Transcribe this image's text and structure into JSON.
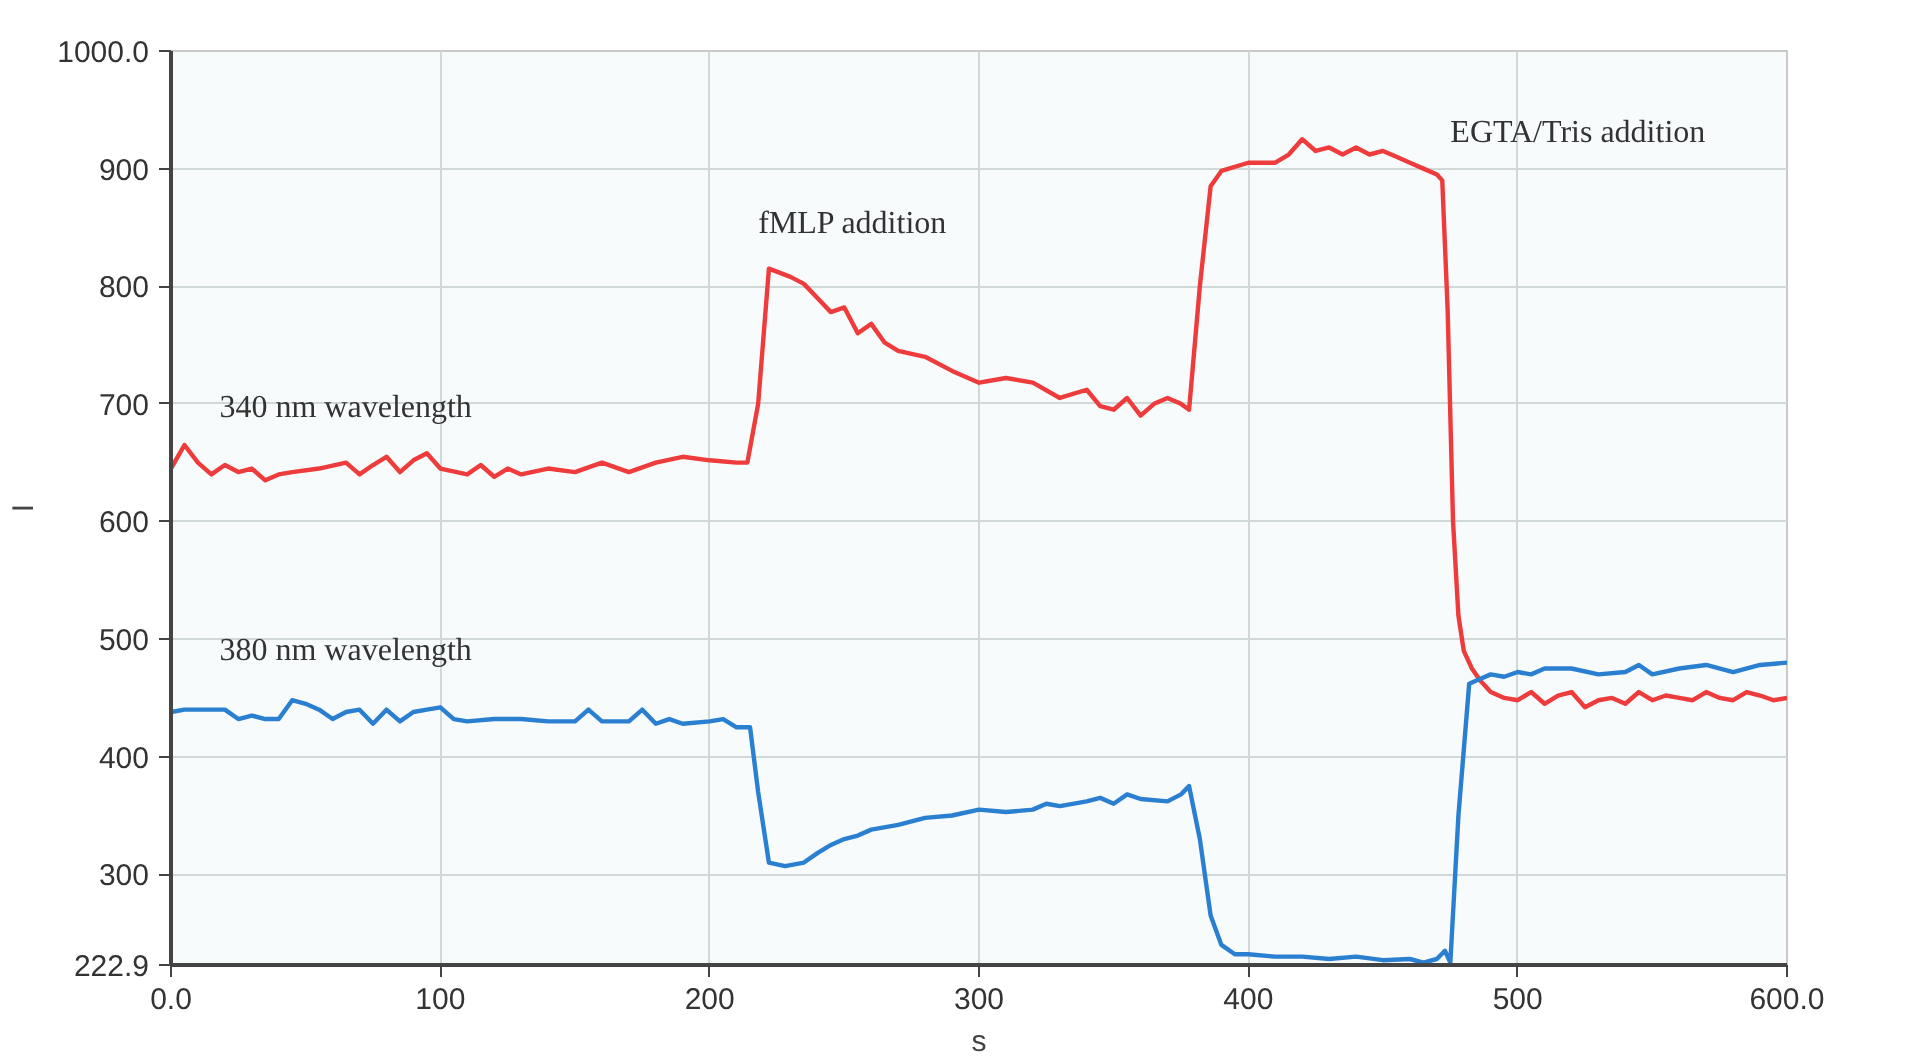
{
  "chart_data": {
    "type": "line",
    "xlabel": "s",
    "ylabel": "I",
    "xlim": [
      0,
      600
    ],
    "ylim": [
      222.9,
      1000
    ],
    "xticks": [
      {
        "value": 0,
        "label": "0.0"
      },
      100,
      200,
      300,
      400,
      500,
      {
        "value": 600,
        "label": "600.0"
      }
    ],
    "yticks": [
      222.9,
      300,
      400,
      500,
      600,
      700,
      800,
      900,
      {
        "value": 1000,
        "label": "1000.0"
      }
    ],
    "grid": true,
    "marker": "none",
    "line_style": "solid",
    "annotations": [
      {
        "text": "fMLP addition",
        "x": 218,
        "y": 818
      },
      {
        "text": "EGTA/Tris addition",
        "x": 475,
        "y": 895
      }
    ],
    "series": [
      {
        "name": "340 nm wavelength",
        "color": "#ee3b3b",
        "x": [
          0,
          5,
          10,
          15,
          20,
          25,
          30,
          35,
          40,
          45,
          55,
          65,
          70,
          75,
          80,
          85,
          90,
          95,
          100,
          110,
          115,
          120,
          125,
          130,
          140,
          150,
          160,
          170,
          180,
          190,
          200,
          210,
          214,
          218,
          222,
          230,
          235,
          240,
          245,
          250,
          255,
          260,
          265,
          270,
          280,
          290,
          300,
          310,
          320,
          330,
          340,
          345,
          350,
          355,
          360,
          365,
          370,
          375,
          378,
          382,
          386,
          390,
          400,
          410,
          415,
          420,
          425,
          430,
          435,
          440,
          445,
          450,
          455,
          460,
          465,
          470,
          472,
          474,
          476,
          478,
          480,
          483,
          486,
          490,
          495,
          500,
          505,
          510,
          515,
          520,
          525,
          530,
          535,
          540,
          545,
          550,
          555,
          560,
          565,
          570,
          575,
          580,
          585,
          590,
          595,
          600
        ],
        "values": [
          645,
          665,
          650,
          640,
          648,
          642,
          645,
          635,
          640,
          642,
          645,
          650,
          640,
          648,
          655,
          642,
          652,
          658,
          645,
          640,
          648,
          638,
          645,
          640,
          645,
          642,
          650,
          642,
          650,
          655,
          652,
          650,
          650,
          700,
          815,
          808,
          802,
          790,
          778,
          782,
          760,
          768,
          752,
          745,
          740,
          728,
          718,
          722,
          718,
          705,
          712,
          698,
          695,
          705,
          690,
          700,
          705,
          700,
          695,
          800,
          885,
          898,
          905,
          905,
          912,
          925,
          915,
          918,
          912,
          918,
          912,
          915,
          910,
          905,
          900,
          895,
          890,
          780,
          600,
          520,
          490,
          475,
          465,
          455,
          450,
          448,
          455,
          445,
          452,
          455,
          442,
          448,
          450,
          445,
          455,
          448,
          452,
          450,
          448,
          455,
          450,
          448,
          455,
          452,
          448,
          450
        ]
      },
      {
        "name": "380 nm wavelength",
        "color": "#2a7fd0",
        "x": [
          0,
          5,
          10,
          20,
          25,
          30,
          35,
          40,
          45,
          50,
          55,
          60,
          65,
          70,
          75,
          80,
          85,
          90,
          95,
          100,
          105,
          110,
          120,
          130,
          140,
          150,
          155,
          160,
          170,
          175,
          180,
          185,
          190,
          200,
          205,
          210,
          215,
          218,
          222,
          228,
          235,
          240,
          245,
          250,
          255,
          260,
          270,
          280,
          290,
          300,
          310,
          320,
          325,
          330,
          340,
          345,
          350,
          355,
          360,
          370,
          375,
          378,
          382,
          386,
          390,
          395,
          400,
          410,
          420,
          430,
          440,
          450,
          460,
          465,
          470,
          473,
          475,
          478,
          482,
          486,
          490,
          495,
          500,
          505,
          510,
          520,
          530,
          540,
          545,
          550,
          560,
          570,
          580,
          590,
          600
        ],
        "values": [
          438,
          440,
          440,
          440,
          432,
          435,
          432,
          432,
          448,
          445,
          440,
          432,
          438,
          440,
          428,
          440,
          430,
          438,
          440,
          442,
          432,
          430,
          432,
          432,
          430,
          430,
          440,
          430,
          430,
          440,
          428,
          432,
          428,
          430,
          432,
          425,
          425,
          370,
          310,
          307,
          310,
          318,
          325,
          330,
          333,
          338,
          342,
          348,
          350,
          355,
          353,
          355,
          360,
          358,
          362,
          365,
          360,
          368,
          364,
          362,
          368,
          375,
          330,
          265,
          240,
          232,
          232,
          230,
          230,
          228,
          230,
          227,
          228,
          225,
          228,
          235,
          225,
          350,
          462,
          466,
          470,
          468,
          472,
          470,
          475,
          475,
          470,
          472,
          478,
          470,
          475,
          478,
          472,
          478,
          480
        ]
      }
    ]
  }
}
